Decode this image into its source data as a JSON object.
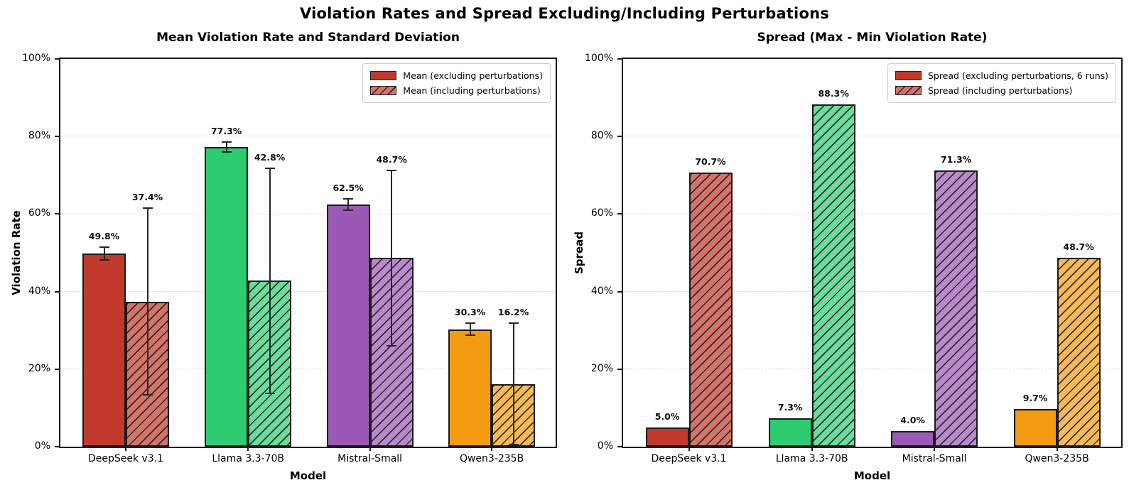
{
  "figure": {
    "suptitle": "Violation Rates and Spread Excluding/Including Perturbations"
  },
  "colors": {
    "solid": [
      "#c0392b",
      "#2ecc71",
      "#9b59b6",
      "#f39c12"
    ],
    "light": [
      "#d3746b",
      "#6cdb9b",
      "#b98acb",
      "#f6b959"
    ],
    "edge": "#1a1a1a",
    "hatch_line": "rgba(25,25,25,0.85)",
    "grid": "#d9d9d9",
    "error_bar": "#262626",
    "legend_border": "#cfcfcf"
  },
  "chart_data": [
    {
      "type": "bar",
      "title": "Mean Violation Rate and Standard Deviation",
      "xlabel": "Model",
      "ylabel": "Violation Rate",
      "ylim": [
        0,
        100
      ],
      "ytick_labels": [
        "0%",
        "20%",
        "40%",
        "60%",
        "80%",
        "100%"
      ],
      "grid": "horizontal-dashed",
      "legend_position": "upper-right",
      "categories": [
        "DeepSeek v3.1",
        "Llama 3.3-70B",
        "Mistral-Small",
        "Qwen3-235B"
      ],
      "series": [
        {
          "name": "Mean (excluding perturbations)",
          "pattern": "solid",
          "values": [
            49.8,
            77.3,
            62.5,
            30.3
          ],
          "labels": [
            "49.8%",
            "77.3%",
            "62.5%",
            "30.3%"
          ],
          "std": [
            1.7,
            1.2,
            1.5,
            1.5
          ]
        },
        {
          "name": "Mean (including perturbations)",
          "pattern": "hatch",
          "values": [
            37.4,
            42.8,
            48.7,
            16.2
          ],
          "labels": [
            "37.4%",
            "42.8%",
            "48.7%",
            "16.2%"
          ],
          "std": [
            24.1,
            29.0,
            22.6,
            15.6
          ]
        }
      ]
    },
    {
      "type": "bar",
      "title": "Spread (Max - Min Violation Rate)",
      "xlabel": "Model",
      "ylabel": "Spread",
      "ylim": [
        0,
        100
      ],
      "ytick_labels": [
        "0%",
        "20%",
        "40%",
        "60%",
        "80%",
        "100%"
      ],
      "grid": "horizontal-dashed",
      "legend_position": "upper-right",
      "categories": [
        "DeepSeek v3.1",
        "Llama 3.3-70B",
        "Mistral-Small",
        "Qwen3-235B"
      ],
      "series": [
        {
          "name": "Spread (excluding perturbations, 6 runs)",
          "pattern": "solid",
          "values": [
            5.0,
            7.3,
            4.0,
            9.7
          ],
          "labels": [
            "5.0%",
            "7.3%",
            "4.0%",
            "9.7%"
          ]
        },
        {
          "name": "Spread (including perturbations)",
          "pattern": "hatch",
          "values": [
            70.7,
            88.3,
            71.3,
            48.7
          ],
          "labels": [
            "70.7%",
            "88.3%",
            "71.3%",
            "48.7%"
          ]
        }
      ]
    }
  ]
}
